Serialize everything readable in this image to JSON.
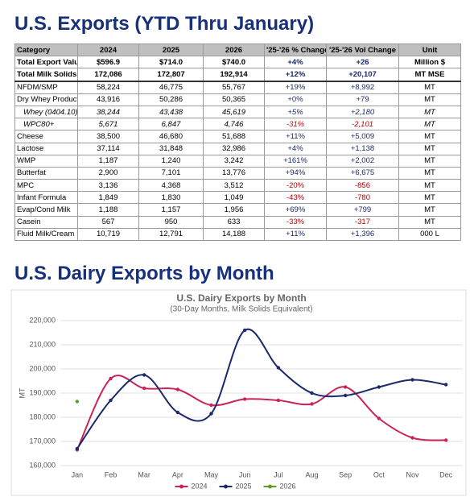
{
  "header": {
    "title": "U.S. Exports (YTD Thru January)"
  },
  "table": {
    "columns": [
      "Category",
      "2024",
      "2025",
      "2026",
      "'25-'26 % Change",
      "'25-'26 Vol Change",
      "Unit"
    ],
    "rows": [
      [
        "Total Export Value",
        "$596.9",
        "$714.0",
        "$740.0",
        "+4%",
        "+26",
        "Million $"
      ],
      [
        "Total Milk Solids",
        "172,086",
        "172,807",
        "192,914",
        "+12%",
        "+20,107",
        "MT MSE"
      ],
      [
        "NFDM/SMP",
        "58,224",
        "46,775",
        "55,767",
        "+19%",
        "+8,992",
        "MT"
      ],
      [
        "Dry Whey Products",
        "43,916",
        "50,286",
        "50,365",
        "+0%",
        "+79",
        "MT"
      ],
      [
        "Whey (0404.10)",
        "38,244",
        "43,438",
        "45,619",
        "+5%",
        "+2,180",
        "MT"
      ],
      [
        "WPC80+",
        "5,671",
        "6,847",
        "4,746",
        "-31%",
        "-2,101",
        "MT"
      ],
      [
        "Cheese",
        "38,500",
        "46,680",
        "51,688",
        "+11%",
        "+5,009",
        "MT"
      ],
      [
        "Lactose",
        "37,114",
        "31,848",
        "32,986",
        "+4%",
        "+1,138",
        "MT"
      ],
      [
        "WMP",
        "1,187",
        "1,240",
        "3,242",
        "+161%",
        "+2,002",
        "MT"
      ],
      [
        "Butterfat",
        "2,900",
        "7,101",
        "13,776",
        "+94%",
        "+6,675",
        "MT"
      ],
      [
        "MPC",
        "3,136",
        "4,368",
        "3,512",
        "-20%",
        "-856",
        "MT"
      ],
      [
        "Infant Formula",
        "1,849",
        "1,830",
        "1,049",
        "-43%",
        "-780",
        "MT"
      ],
      [
        "Evap/Cond Milk",
        "1,188",
        "1,157",
        "1,956",
        "+69%",
        "+799",
        "MT"
      ],
      [
        "Casein",
        "567",
        "950",
        "633",
        "-33%",
        "-317",
        "MT"
      ],
      [
        "Fluid Milk/Cream",
        "10,719",
        "12,791",
        "14,188",
        "+11%",
        "+1,396",
        "000 L"
      ]
    ]
  },
  "section_title": "U.S. Dairy Exports by Month",
  "chart_data": {
    "type": "line",
    "title": "U.S. Dairy Exports by Month",
    "subtitle": "(30-Day Months, Milk Solids Equivalent)",
    "y_label": "MT",
    "categories": [
      "Jan",
      "Feb",
      "Mar",
      "Apr",
      "May",
      "Jun",
      "Jul",
      "Aug",
      "Sep",
      "Oct",
      "Nov",
      "Dec"
    ],
    "series": [
      {
        "name": "2024",
        "color": "#c8245a",
        "values": [
          166500,
          196000,
          192000,
          191500,
          185000,
          187500,
          187000,
          185500,
          192500,
          179500,
          171500,
          170500
        ]
      },
      {
        "name": "2025",
        "color": "#1b2a6b",
        "values": [
          167000,
          187000,
          197500,
          182000,
          181500,
          216000,
          200500,
          190000,
          189000,
          192500,
          195500,
          193500
        ]
      },
      {
        "name": "2026",
        "color": "#5a9e2a",
        "values": [
          186500,
          null,
          null,
          null,
          null,
          null,
          null,
          null,
          null,
          null,
          null,
          null
        ]
      }
    ],
    "ylim": [
      160000,
      220000
    ],
    "yticks": [
      {
        "value": 160000,
        "label": "160,000"
      },
      {
        "value": 170000,
        "label": "170,000"
      },
      {
        "value": 180000,
        "label": "180,000"
      },
      {
        "value": 190000,
        "label": "190,000"
      },
      {
        "value": 200000,
        "label": "200,000"
      },
      {
        "value": 210000,
        "label": "210,000"
      },
      {
        "value": 220000,
        "label": "220,000"
      }
    ],
    "grid": true,
    "legend": "bottom"
  }
}
